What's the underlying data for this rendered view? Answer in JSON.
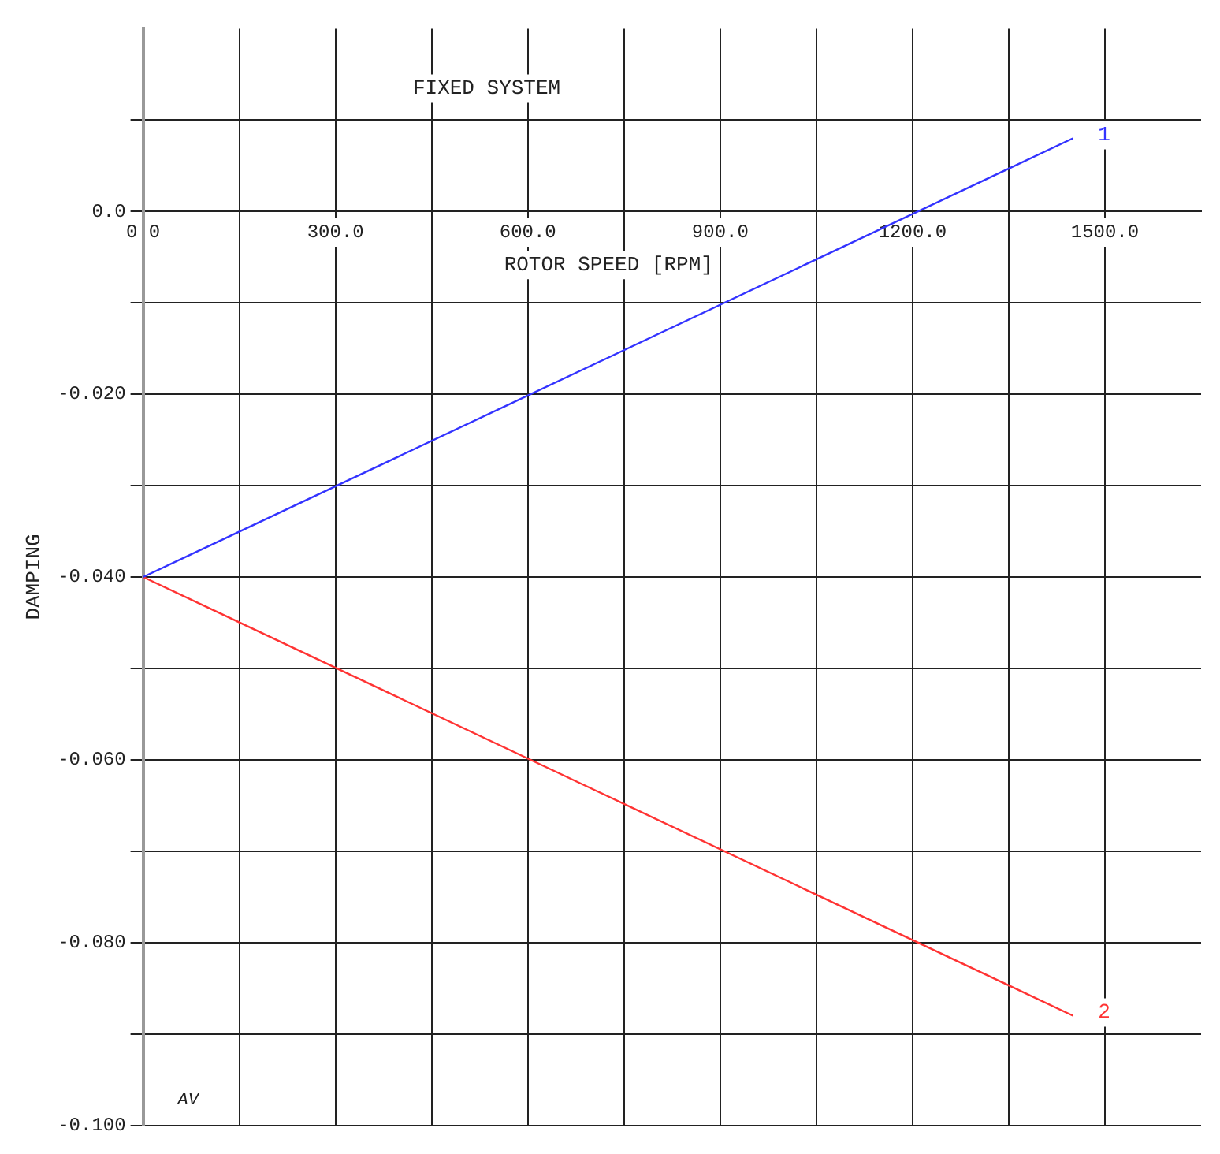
{
  "chart_data": {
    "type": "line",
    "title": "FIXED SYSTEM",
    "xlabel": "ROTOR SPEED [RPM]",
    "ylabel": "DAMPING",
    "annotations": [
      "AV"
    ],
    "x": [
      0,
      1450
    ],
    "series": [
      {
        "name": "1",
        "color": "#3333ff",
        "values": [
          -0.04,
          0.008
        ]
      },
      {
        "name": "2",
        "color": "#ff3333",
        "values": [
          -0.04,
          -0.088
        ]
      }
    ],
    "xlim": [
      0,
      1650
    ],
    "xticks": [
      {
        "value": 0,
        "label": "0.0"
      },
      {
        "value": 150,
        "label": null
      },
      {
        "value": 300,
        "label": "300.0"
      },
      {
        "value": 450,
        "label": null
      },
      {
        "value": 600,
        "label": "600.0"
      },
      {
        "value": 750,
        "label": null
      },
      {
        "value": 900,
        "label": "900.0"
      },
      {
        "value": 1050,
        "label": null
      },
      {
        "value": 1200,
        "label": "1200.0"
      },
      {
        "value": 1350,
        "label": null
      },
      {
        "value": 1500,
        "label": "1500.0"
      }
    ],
    "ylim": [
      -0.1,
      0.02
    ],
    "yticks": [
      {
        "value": -0.1,
        "label": "-0.100"
      },
      {
        "value": -0.09,
        "label": null
      },
      {
        "value": -0.08,
        "label": "-0.080"
      },
      {
        "value": -0.07,
        "label": null
      },
      {
        "value": -0.06,
        "label": "-0.060"
      },
      {
        "value": -0.05,
        "label": null
      },
      {
        "value": -0.04,
        "label": "-0.040"
      },
      {
        "value": -0.03,
        "label": null
      },
      {
        "value": -0.02,
        "label": "-0.020"
      },
      {
        "value": -0.01,
        "label": null
      },
      {
        "value": 0,
        "label": "0.0"
      },
      {
        "value": 0.01,
        "label": null
      }
    ],
    "grid": true,
    "legend": false,
    "marker": "none",
    "line_style": "solid"
  }
}
